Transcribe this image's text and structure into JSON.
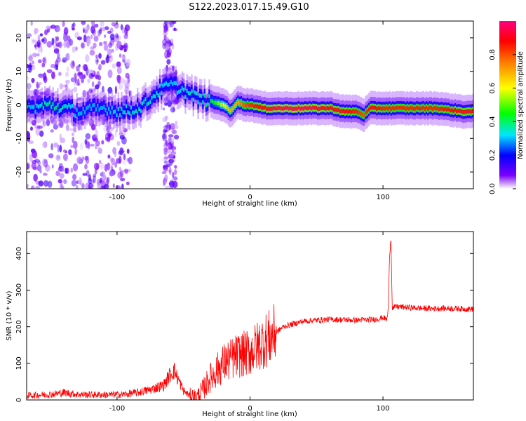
{
  "figure_title": "S122.2023.017.15.49.G10",
  "chart_data": [
    {
      "type": "heatmap",
      "xlabel": "Height of straight line (km)",
      "ylabel": "Frequency (Hz)",
      "xlim": [
        -168,
        168
      ],
      "ylim": [
        -25,
        25
      ],
      "x_ticks": [
        -100,
        0,
        100
      ],
      "y_ticks": [
        -20,
        -10,
        0,
        10,
        20
      ],
      "colorbar": {
        "label": "Normalized spectral amplitude",
        "range": [
          0,
          1
        ],
        "ticks": [
          "0.0",
          "0.2",
          "0.4",
          "0.6",
          "0.8"
        ],
        "tick_values": [
          0.0,
          0.2,
          0.4,
          0.6,
          0.8
        ],
        "colors": [
          "#ffffff",
          "#7b00ff",
          "#0000ff",
          "#00e5ff",
          "#00ff00",
          "#ffff00",
          "#ff7f00",
          "#ff0000",
          "#ff0080"
        ]
      },
      "ridge": {
        "x": [
          -165,
          -150,
          -130,
          -110,
          -95,
          -80,
          -70,
          -60,
          -50,
          -40,
          -30,
          -20,
          -15,
          -10,
          -5,
          0,
          10,
          20,
          40,
          60,
          70,
          80,
          85,
          90,
          100,
          120,
          140,
          160,
          165
        ],
        "frequency": [
          -1,
          0,
          -2,
          -1,
          -2,
          0,
          4,
          6,
          4,
          2,
          1,
          0,
          -2,
          1,
          0,
          0,
          -1,
          -1,
          -1,
          -1,
          -2,
          -2,
          -3,
          -1,
          -1,
          -1,
          -1,
          -2,
          -2
        ],
        "amplitude": [
          0.3,
          0.4,
          0.3,
          0.3,
          0.35,
          0.35,
          0.35,
          0.3,
          0.35,
          0.35,
          0.4,
          0.6,
          0.7,
          0.7,
          0.8,
          0.85,
          0.9,
          0.95,
          0.95,
          0.9,
          0.9,
          0.85,
          0.8,
          0.9,
          0.85,
          0.85,
          0.85,
          0.9,
          0.9
        ]
      },
      "noise_regions": [
        {
          "x_range": [
            -168,
            -90
          ],
          "frequency_range": [
            -25,
            25
          ]
        },
        {
          "x_range": [
            -65,
            -55
          ],
          "frequency_range": [
            -25,
            25
          ]
        }
      ]
    },
    {
      "type": "line",
      "xlabel": "Height of straight line (km)",
      "ylabel": "SNR (10 * v/v)",
      "xlim": [
        -168,
        168
      ],
      "ylim": [
        0,
        460
      ],
      "x_ticks": [
        -100,
        0,
        100
      ],
      "y_ticks": [
        0,
        100,
        200,
        300,
        400
      ],
      "series": [
        {
          "color": "#ff0000",
          "x": [
            -168,
            -150,
            -140,
            -130,
            -110,
            -95,
            -85,
            -75,
            -65,
            -60,
            -57,
            -50,
            -45,
            -40,
            -35,
            -30,
            -25,
            -20,
            -15,
            -10,
            -5,
            0,
            5,
            10,
            15,
            20,
            25,
            30,
            40,
            60,
            80,
            95,
            100,
            103,
            104,
            105,
            106,
            107,
            108,
            110,
            130,
            150,
            168
          ],
          "y": [
            12,
            15,
            20,
            15,
            14,
            15,
            20,
            28,
            40,
            70,
            80,
            25,
            10,
            8,
            30,
            60,
            80,
            100,
            110,
            120,
            125,
            130,
            145,
            160,
            170,
            185,
            200,
            205,
            215,
            220,
            218,
            220,
            225,
            220,
            250,
            400,
            440,
            250,
            252,
            255,
            250,
            250,
            248
          ]
        }
      ]
    }
  ]
}
